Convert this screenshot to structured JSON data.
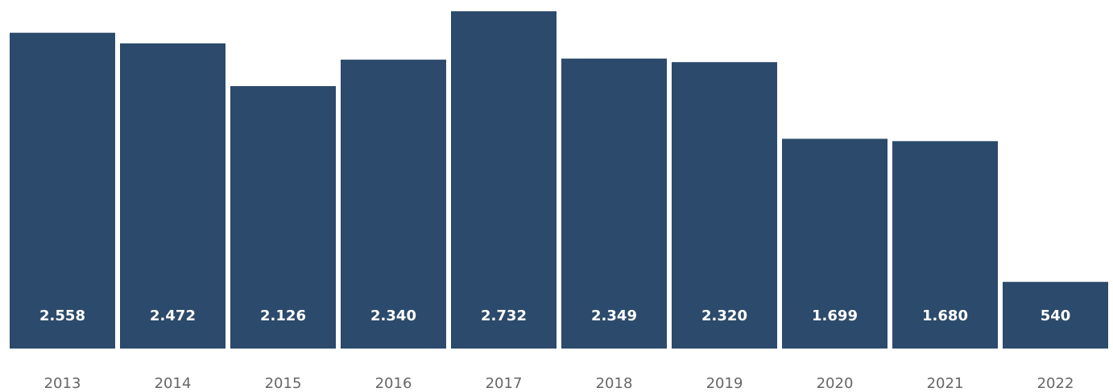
{
  "chart_data": {
    "type": "bar",
    "categories": [
      "2013",
      "2014",
      "2015",
      "2016",
      "2017",
      "2018",
      "2019",
      "2020",
      "2021",
      "2022"
    ],
    "values": [
      2558,
      2472,
      2126,
      2340,
      2732,
      2349,
      2320,
      1699,
      1680,
      540
    ],
    "value_labels": [
      "2.558",
      "2.472",
      "2.126",
      "2.340",
      "2.732",
      "2.349",
      "2.320",
      "1.699",
      "1.680",
      "540"
    ],
    "color": "#2c4a6b"
  }
}
